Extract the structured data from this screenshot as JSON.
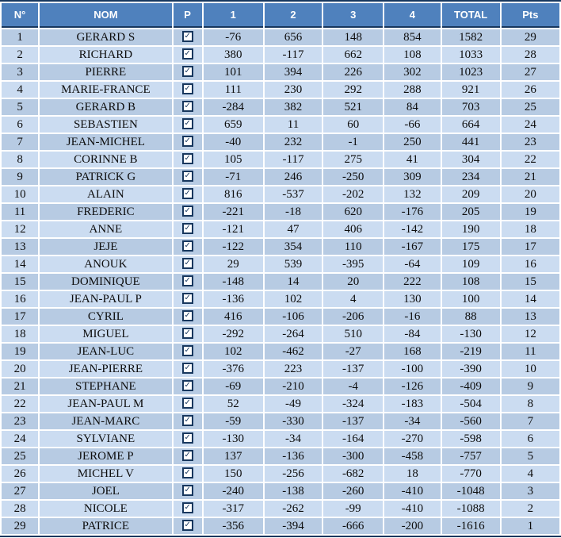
{
  "table": {
    "columns": [
      {
        "key": "n",
        "label": "N°"
      },
      {
        "key": "nom",
        "label": "NOM"
      },
      {
        "key": "p",
        "label": "P"
      },
      {
        "key": "r1",
        "label": "1"
      },
      {
        "key": "r2",
        "label": "2"
      },
      {
        "key": "r3",
        "label": "3"
      },
      {
        "key": "r4",
        "label": "4"
      },
      {
        "key": "total",
        "label": "TOTAL"
      },
      {
        "key": "pts",
        "label": "Pts"
      }
    ],
    "rows": [
      {
        "n": 1,
        "nom": "GERARD S",
        "p": true,
        "r1": -76,
        "r2": 656,
        "r3": 148,
        "r4": 854,
        "total": 1582,
        "pts": 29
      },
      {
        "n": 2,
        "nom": "RICHARD",
        "p": true,
        "r1": 380,
        "r2": -117,
        "r3": 662,
        "r4": 108,
        "total": 1033,
        "pts": 28
      },
      {
        "n": 3,
        "nom": "PIERRE",
        "p": true,
        "r1": 101,
        "r2": 394,
        "r3": 226,
        "r4": 302,
        "total": 1023,
        "pts": 27
      },
      {
        "n": 4,
        "nom": "MARIE-FRANCE",
        "p": true,
        "r1": 111,
        "r2": 230,
        "r3": 292,
        "r4": 288,
        "total": 921,
        "pts": 26
      },
      {
        "n": 5,
        "nom": "GERARD B",
        "p": true,
        "r1": -284,
        "r2": 382,
        "r3": 521,
        "r4": 84,
        "total": 703,
        "pts": 25
      },
      {
        "n": 6,
        "nom": "SEBASTIEN",
        "p": true,
        "r1": 659,
        "r2": 11,
        "r3": 60,
        "r4": -66,
        "total": 664,
        "pts": 24
      },
      {
        "n": 7,
        "nom": "JEAN-MICHEL",
        "p": true,
        "r1": -40,
        "r2": 232,
        "r3": -1,
        "r4": 250,
        "total": 441,
        "pts": 23
      },
      {
        "n": 8,
        "nom": "CORINNE B",
        "p": true,
        "r1": 105,
        "r2": -117,
        "r3": 275,
        "r4": 41,
        "total": 304,
        "pts": 22
      },
      {
        "n": 9,
        "nom": "PATRICK G",
        "p": true,
        "r1": -71,
        "r2": 246,
        "r3": -250,
        "r4": 309,
        "total": 234,
        "pts": 21
      },
      {
        "n": 10,
        "nom": "ALAIN",
        "p": true,
        "r1": 816,
        "r2": -537,
        "r3": -202,
        "r4": 132,
        "total": 209,
        "pts": 20
      },
      {
        "n": 11,
        "nom": "FREDERIC",
        "p": true,
        "r1": -221,
        "r2": -18,
        "r3": 620,
        "r4": -176,
        "total": 205,
        "pts": 19
      },
      {
        "n": 12,
        "nom": "ANNE",
        "p": true,
        "r1": -121,
        "r2": 47,
        "r3": 406,
        "r4": -142,
        "total": 190,
        "pts": 18
      },
      {
        "n": 13,
        "nom": "JEJE",
        "p": true,
        "r1": -122,
        "r2": 354,
        "r3": 110,
        "r4": -167,
        "total": 175,
        "pts": 17
      },
      {
        "n": 14,
        "nom": "ANOUK",
        "p": true,
        "r1": 29,
        "r2": 539,
        "r3": -395,
        "r4": -64,
        "total": 109,
        "pts": 16
      },
      {
        "n": 15,
        "nom": "DOMINIQUE",
        "p": true,
        "r1": -148,
        "r2": 14,
        "r3": 20,
        "r4": 222,
        "total": 108,
        "pts": 15
      },
      {
        "n": 16,
        "nom": "JEAN-PAUL P",
        "p": true,
        "r1": -136,
        "r2": 102,
        "r3": 4,
        "r4": 130,
        "total": 100,
        "pts": 14
      },
      {
        "n": 17,
        "nom": "CYRIL",
        "p": true,
        "r1": 416,
        "r2": -106,
        "r3": -206,
        "r4": -16,
        "total": 88,
        "pts": 13
      },
      {
        "n": 18,
        "nom": "MIGUEL",
        "p": true,
        "r1": -292,
        "r2": -264,
        "r3": 510,
        "r4": -84,
        "total": -130,
        "pts": 12
      },
      {
        "n": 19,
        "nom": "JEAN-LUC",
        "p": true,
        "r1": 102,
        "r2": -462,
        "r3": -27,
        "r4": 168,
        "total": -219,
        "pts": 11
      },
      {
        "n": 20,
        "nom": "JEAN-PIERRE",
        "p": true,
        "r1": -376,
        "r2": 223,
        "r3": -137,
        "r4": -100,
        "total": -390,
        "pts": 10
      },
      {
        "n": 21,
        "nom": "STEPHANE",
        "p": true,
        "r1": -69,
        "r2": -210,
        "r3": -4,
        "r4": -126,
        "total": -409,
        "pts": 9
      },
      {
        "n": 22,
        "nom": "JEAN-PAUL M",
        "p": true,
        "r1": 52,
        "r2": -49,
        "r3": -324,
        "r4": -183,
        "total": -504,
        "pts": 8
      },
      {
        "n": 23,
        "nom": "JEAN-MARC",
        "p": true,
        "r1": -59,
        "r2": -330,
        "r3": -137,
        "r4": -34,
        "total": -560,
        "pts": 7
      },
      {
        "n": 24,
        "nom": "SYLVIANE",
        "p": true,
        "r1": -130,
        "r2": -34,
        "r3": -164,
        "r4": -270,
        "total": -598,
        "pts": 6
      },
      {
        "n": 25,
        "nom": "JEROME P",
        "p": true,
        "r1": 137,
        "r2": -136,
        "r3": -300,
        "r4": -458,
        "total": -757,
        "pts": 5
      },
      {
        "n": 26,
        "nom": "MICHEL V",
        "p": true,
        "r1": 150,
        "r2": -256,
        "r3": -682,
        "r4": 18,
        "total": -770,
        "pts": 4
      },
      {
        "n": 27,
        "nom": "JOEL",
        "p": true,
        "r1": -240,
        "r2": -138,
        "r3": -260,
        "r4": -410,
        "total": -1048,
        "pts": 3
      },
      {
        "n": 28,
        "nom": "NICOLE",
        "p": true,
        "r1": -317,
        "r2": -262,
        "r3": -99,
        "r4": -410,
        "total": -1088,
        "pts": 2
      },
      {
        "n": 29,
        "nom": "PATRICE",
        "p": true,
        "r1": -356,
        "r2": -394,
        "r3": -666,
        "r4": -200,
        "total": -1616,
        "pts": 1
      }
    ]
  },
  "icons": {
    "checkbox_checked": "✓"
  },
  "colors": {
    "header_bg": "#4f81bd",
    "band_dark": "#b7cbe3",
    "band_light": "#cbdcf1",
    "negative": "#c00000",
    "positive": "#0d0d0d",
    "border_dark": "#17375e",
    "grid": "#ffffff",
    "header_text": "#ffffff"
  }
}
